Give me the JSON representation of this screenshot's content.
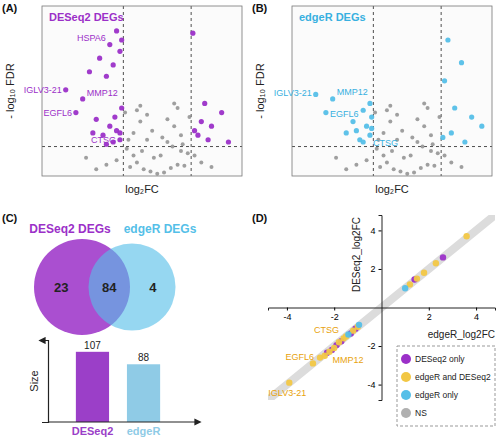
{
  "chart_data": [
    {
      "type": "scatter",
      "panel": "(A)",
      "title": "DESeq2 DEGs",
      "color": "#9b30c8",
      "xlabel": "log₂FC",
      "ylabel": "- log₁₀ FDR",
      "xlim": [
        -3.4,
        2.5
      ],
      "ylim": [
        0,
        7.5
      ],
      "tick_labels": false,
      "vlines": [
        -1,
        1
      ],
      "hlines": [
        1.3
      ],
      "series": [
        {
          "color": "#808080",
          "x": [
            -0.9,
            -0.7,
            -0.5,
            -0.3,
            -0.1,
            0.1,
            0.3,
            0.5,
            0.7,
            0.9,
            -0.8,
            -0.6,
            -0.4,
            -0.2,
            0,
            0.2,
            0.4,
            0.6,
            0.8,
            -1.2,
            1.1,
            -1.5,
            1.3,
            -0.95,
            0.95,
            -0.6,
            0.6,
            -0.3,
            0.3,
            -0.85,
            0.75,
            -0.45,
            0.45,
            -1.8,
            1.6,
            -0.15,
            0.15,
            -0.7,
            0.7,
            -2.1,
            -0.5,
            0.5
          ],
          "values": [
            1.2,
            1.9,
            2.4,
            1.6,
            0.8,
            0.9,
            1.5,
            2.2,
            1.8,
            1.0,
            0.4,
            0.6,
            0.3,
            0.2,
            0.1,
            0.15,
            0.35,
            0.5,
            0.45,
            0.7,
            0.9,
            0.5,
            0.6,
            2.8,
            2.6,
            2.9,
            3.0,
            2.7,
            2.5,
            1.6,
            1.4,
            1.1,
            1.3,
            0.3,
            0.4,
            2.0,
            1.7,
            0.9,
            1.1,
            0.8,
            3.1,
            3.2
          ]
        },
        {
          "color": "#9b30c8",
          "x": [
            -1.2,
            -1.05,
            -1.4,
            -1.1,
            -1.7,
            -1.3,
            -2.0,
            -1.5,
            -2.7,
            -2.2,
            -2.4,
            -1.8,
            -1.4,
            -1.2,
            -1.6,
            -1.1,
            -1.3,
            -1.9,
            -1.5,
            -1.25,
            -1.05,
            -1.1,
            1.05,
            1.3,
            1.6,
            1.9,
            1.2,
            1.5,
            2.1,
            1.1,
            1.4
          ],
          "values": [
            6.4,
            6.0,
            5.8,
            5.5,
            5.2,
            4.9,
            4.6,
            4.4,
            3.8,
            3.4,
            2.8,
            2.5,
            2.2,
            2.0,
            1.8,
            1.6,
            1.5,
            1.9,
            1.4,
            2.6,
            3.0,
            1.9,
            6.3,
            2.4,
            2.2,
            2.8,
            1.8,
            1.6,
            1.5,
            2.0,
            3.2
          ]
        }
      ],
      "annotations": [
        {
          "text": "HSPA6",
          "x": -1.4,
          "y": 5.8,
          "color": "#9b30c8"
        },
        {
          "text": "IGLV3-21",
          "x": -2.7,
          "y": 3.8,
          "color": "#9b30c8"
        },
        {
          "text": "MMP12",
          "x": -2.2,
          "y": 3.4,
          "color": "#9b30c8"
        },
        {
          "text": "EGFL6",
          "x": -2.4,
          "y": 2.8,
          "color": "#9b30c8"
        },
        {
          "text": "CTSG",
          "x": -1.1,
          "y": 1.9,
          "color": "#9b30c8"
        }
      ]
    },
    {
      "type": "scatter",
      "panel": "(B)",
      "title": "edgeR DEGs",
      "color": "#38b0e0",
      "xlabel": "log₂FC",
      "ylabel": "- log₁₀ FDR",
      "xlim": [
        -3.4,
        2.5
      ],
      "ylim": [
        0,
        7.5
      ],
      "tick_labels": false,
      "vlines": [
        -1,
        1
      ],
      "hlines": [
        1.3
      ],
      "series": [
        {
          "color": "#808080",
          "x": [
            -0.9,
            -0.7,
            -0.5,
            -0.3,
            -0.1,
            0.1,
            0.3,
            0.5,
            0.7,
            0.9,
            -0.8,
            -0.6,
            -0.4,
            -0.2,
            0,
            0.2,
            0.4,
            0.6,
            0.8,
            -1.2,
            1.1,
            -1.5,
            1.3,
            -0.95,
            0.95,
            -0.6,
            0.6,
            -0.3,
            0.3,
            -0.85,
            0.75,
            -0.45,
            0.45,
            -1.8,
            1.6,
            -0.15,
            0.15,
            -0.7,
            0.7,
            -2.1,
            -0.5,
            0.5
          ],
          "values": [
            1.2,
            1.9,
            2.4,
            1.6,
            0.8,
            0.9,
            1.5,
            2.2,
            1.8,
            1.0,
            0.4,
            0.6,
            0.3,
            0.2,
            0.1,
            0.15,
            0.35,
            0.5,
            0.45,
            0.7,
            0.9,
            0.5,
            0.6,
            2.8,
            2.6,
            2.9,
            3.0,
            2.7,
            2.5,
            1.6,
            1.4,
            1.1,
            1.3,
            0.3,
            0.4,
            2.0,
            1.7,
            0.9,
            1.1,
            0.8,
            3.1,
            3.2
          ]
        },
        {
          "color": "#55bfe8",
          "x": [
            -1.1,
            -1.3,
            -1.05,
            -1.6,
            -2.2,
            -2.4,
            -2.7,
            -1.2,
            -1.5,
            -1.8,
            -1.1,
            -1.4,
            -1.3,
            -1.05,
            1.2,
            1.6,
            1.1,
            1.4,
            1.9,
            2.2,
            1.3,
            1.05,
            1.7
          ],
          "values": [
            3.2,
            2.9,
            2.6,
            2.4,
            3.4,
            2.8,
            3.6,
            2.2,
            2.0,
            1.9,
            1.8,
            1.6,
            1.5,
            2.1,
            6.0,
            5.0,
            4.2,
            3.0,
            2.6,
            2.2,
            1.9,
            1.7,
            1.5
          ]
        }
      ],
      "annotations": [
        {
          "text": "MMP12",
          "x": -2.2,
          "y": 3.4,
          "color": "#38b0e0"
        },
        {
          "text": "IGLV3-21",
          "x": -2.7,
          "y": 3.6,
          "color": "#38b0e0"
        },
        {
          "text": "EGFL6",
          "x": -2.4,
          "y": 2.8,
          "color": "#38b0e0"
        },
        {
          "text": "CTSG",
          "x": -1.1,
          "y": 1.8,
          "color": "#38b0e0"
        }
      ]
    },
    {
      "type": "venn",
      "panel": "(C)",
      "sets": [
        {
          "name": "DESeq2 DEGs",
          "color": "#9b30c8"
        },
        {
          "name": "edgeR DEGs",
          "color": "#55bfe8"
        }
      ],
      "values": [
        23,
        84,
        4
      ]
    },
    {
      "type": "bar",
      "ylabel": "Size",
      "categories": [
        "DESeq2",
        "edgeR"
      ],
      "values": [
        107,
        88
      ],
      "colors": [
        "#9b3fc8",
        "#8fcbe6"
      ],
      "ylim": [
        0,
        125
      ],
      "data_labels": true,
      "tick_labels": "x"
    },
    {
      "type": "scatter",
      "panel": "(D)",
      "xlabel": "edgeR_log2FC",
      "ylabel": "DESeq2_log2FC",
      "xlim": [
        -4.8,
        4.8
      ],
      "ylim": [
        -4.8,
        4.8
      ],
      "xticks": [
        -4,
        -2,
        2,
        4
      ],
      "yticks": [
        -4,
        -2,
        2,
        4
      ],
      "legend": "bottom-right",
      "series": [
        {
          "name": "DESeq2 only",
          "color": "#9b30c8",
          "x": [
            -2.1,
            -1.9,
            -1.3,
            -2.3,
            1.4,
            -1.1,
            2.6,
            -1.7
          ],
          "values": [
            -2.2,
            -1.95,
            -1.35,
            -2.35,
            1.45,
            -1.1,
            2.6,
            -1.75
          ]
        },
        {
          "name": "edgeR and DESeq2",
          "color": "#f2c744",
          "x": [
            -3.9,
            -2.6,
            -2.2,
            -2.4,
            -2.0,
            -1.8,
            -1.5,
            -1.2,
            -1.0,
            -1.6,
            -2.9,
            1.2,
            1.5,
            1.8,
            2.3,
            3.6
          ],
          "values": [
            -3.9,
            -2.6,
            -2.3,
            -2.5,
            -2.1,
            -1.8,
            -1.5,
            -1.2,
            -1.0,
            -1.6,
            -2.9,
            1.2,
            1.5,
            1.8,
            2.3,
            3.7
          ]
        },
        {
          "name": "edgeR only",
          "color": "#55bfe8",
          "x": [
            -1.4,
            -0.95,
            1.0
          ],
          "values": [
            -1.4,
            -0.9,
            1.0
          ]
        },
        {
          "name": "NS",
          "color": "#b0b0b0",
          "x": [],
          "values": []
        }
      ],
      "annotations": [
        {
          "text": "CTSG",
          "x": -1.5,
          "y": -1.5,
          "color": "#e8a20c"
        },
        {
          "text": "EGFL6",
          "x": -2.6,
          "y": -2.6,
          "color": "#e8a20c"
        },
        {
          "text": "MMP12",
          "x": -2.2,
          "y": -2.3,
          "color": "#e8a20c"
        },
        {
          "text": "IGLV3-21",
          "x": -3.9,
          "y": -3.9,
          "color": "#e8a20c"
        }
      ]
    }
  ]
}
